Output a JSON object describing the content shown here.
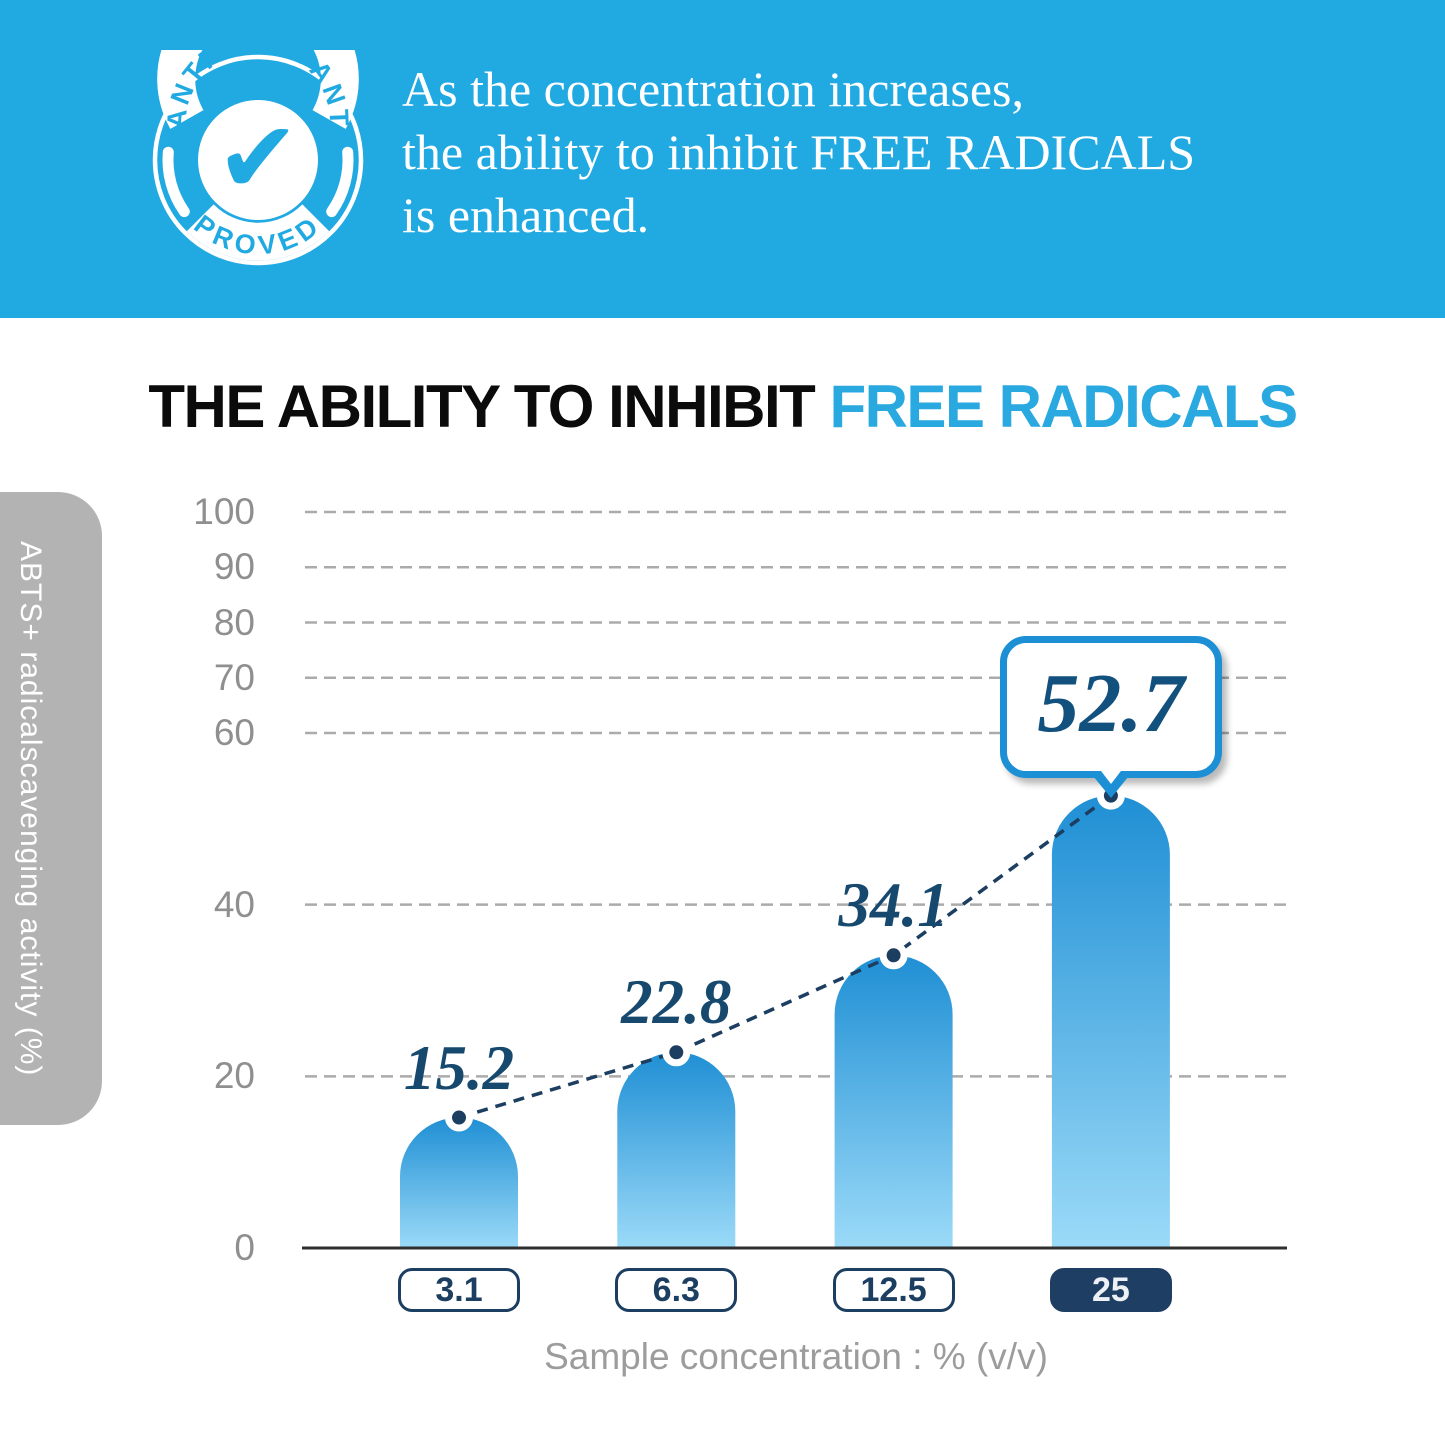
{
  "header": {
    "badge": {
      "top_text": "ANTI OXYDANT",
      "bottom_text": "PROVED"
    },
    "lines": [
      "As the concentration increases,",
      "the ability to inhibit FREE RADICALS",
      "is enhanced."
    ]
  },
  "title": {
    "black": "THE ABILITY TO INHIBIT",
    "blue": "FREE RADICALS"
  },
  "chart_data": {
    "type": "bar",
    "title": "THE ABILITY TO INHIBIT FREE RADICALS",
    "categories": [
      "3.1",
      "6.3",
      "12.5",
      "25"
    ],
    "values": [
      15.2,
      22.8,
      34.1,
      52.7
    ],
    "value_labels": [
      "15.2",
      "22.8",
      "34.1"
    ],
    "callout_value": "52.7",
    "highlighted_category_index": 3,
    "y_ticks": [
      0,
      20,
      40,
      60,
      70,
      80,
      90,
      100
    ],
    "ylim": [
      0,
      100
    ],
    "ylabel": "ABTS+ radicalscavenging activity (%)",
    "xlabel": "Sample concentration : % (v/v)",
    "grid": "horizontal dashed gridlines, no gridline at 0, solid baseline axis",
    "axis_note": "y-axis spacing compressed above 60",
    "overlay": "navy dashed line with round point markers connecting bar tops",
    "bar_style": "rounded semicircle top, vertical gradient dark blue to light blue"
  },
  "colors": {
    "header_bg": "#21A9E2",
    "accent_blue": "#29A9E0",
    "navy": "#1C3E60",
    "navy_text": "#17496F",
    "callout_border": "#1D8FD4",
    "bar_top": "#1F8FD4",
    "bar_bottom": "#9BDAF8",
    "gridline": "#ABABAB",
    "tick_gray": "#8F8F8F",
    "caption_gray": "#9C9C9C",
    "sidebar_gray": "#B3B3B3",
    "axis_line": "#2F2F2F"
  }
}
